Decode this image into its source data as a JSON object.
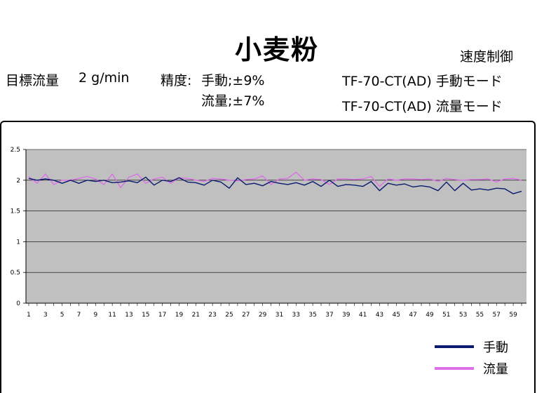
{
  "header": {
    "title": "小麦粉",
    "speed_control": "速度制御",
    "target_label": "目標流量",
    "target_value": "2 g/min",
    "precision_label": "精度:",
    "precision_manual": "手動;±9%",
    "precision_flow": "流量;±7%",
    "model_manual": "TF-70-CT(AD)  手動モード",
    "model_flow": "TF-70-CT(AD)  流量モード"
  },
  "colors": {
    "manual": "#0a1a6e",
    "flow": "#dd6fe8",
    "plot_bg": "#c0c0c0",
    "grid": "#000000"
  },
  "chart_data": {
    "type": "line",
    "title": "",
    "xlabel": "",
    "ylabel": "",
    "ylim": [
      0,
      2.5
    ],
    "y_ticks": [
      "0",
      "0.5",
      "1",
      "1.5",
      "2",
      "2.5"
    ],
    "x_ticks": [
      "1",
      "3",
      "5",
      "7",
      "9",
      "11",
      "13",
      "15",
      "17",
      "19",
      "21",
      "23",
      "25",
      "27",
      "29",
      "31",
      "33",
      "35",
      "37",
      "39",
      "41",
      "43",
      "45",
      "47",
      "49",
      "51",
      "53",
      "55",
      "57",
      "59"
    ],
    "x": [
      1,
      2,
      3,
      4,
      5,
      6,
      7,
      8,
      9,
      10,
      11,
      12,
      13,
      14,
      15,
      16,
      17,
      18,
      19,
      20,
      21,
      22,
      23,
      24,
      25,
      26,
      27,
      28,
      29,
      30,
      31,
      32,
      33,
      34,
      35,
      36,
      37,
      38,
      39,
      40,
      41,
      42,
      43,
      44,
      45,
      46,
      47,
      48,
      49,
      50,
      51,
      52,
      53,
      54,
      55,
      56,
      57,
      58,
      59,
      60
    ],
    "legend_position": "bottom-right",
    "grid": true,
    "series": [
      {
        "name": "手動",
        "color": "#0a1a6e",
        "values": [
          2.03,
          2.0,
          2.02,
          2.0,
          1.95,
          2.0,
          1.95,
          2.0,
          1.98,
          2.0,
          1.96,
          1.97,
          1.99,
          1.96,
          2.05,
          1.92,
          2.0,
          1.98,
          2.04,
          1.97,
          1.96,
          1.92,
          2.0,
          1.97,
          1.87,
          2.04,
          1.93,
          1.95,
          1.91,
          1.98,
          1.95,
          1.93,
          1.96,
          1.92,
          1.98,
          1.9,
          2.0,
          1.9,
          1.93,
          1.92,
          1.9,
          1.98,
          1.83,
          1.95,
          1.92,
          1.94,
          1.89,
          1.91,
          1.89,
          1.83,
          1.97,
          1.83,
          1.95,
          1.84,
          1.86,
          1.84,
          1.87,
          1.86,
          1.78,
          1.82
        ]
      },
      {
        "name": "流量",
        "color": "#dd6fe8",
        "values": [
          2.06,
          1.95,
          2.1,
          1.93,
          2.0,
          2.0,
          2.03,
          2.06,
          2.02,
          1.93,
          2.1,
          1.88,
          2.05,
          2.1,
          1.95,
          2.02,
          2.05,
          1.95,
          2.04,
          2.03,
          2.0,
          1.98,
          2.03,
          2.02,
          2.0,
          1.99,
          2.01,
          2.02,
          2.07,
          1.93,
          2.02,
          2.03,
          2.13,
          2.0,
          2.02,
          2.01,
          1.93,
          2.02,
          2.02,
          2.01,
          2.02,
          2.06,
          1.9,
          2.02,
          2.0,
          2.02,
          2.02,
          2.01,
          2.02,
          1.98,
          2.03,
          2.01,
          2.0,
          2.01,
          2.01,
          2.02,
          1.97,
          2.02,
          2.03,
          2.0
        ]
      }
    ]
  }
}
